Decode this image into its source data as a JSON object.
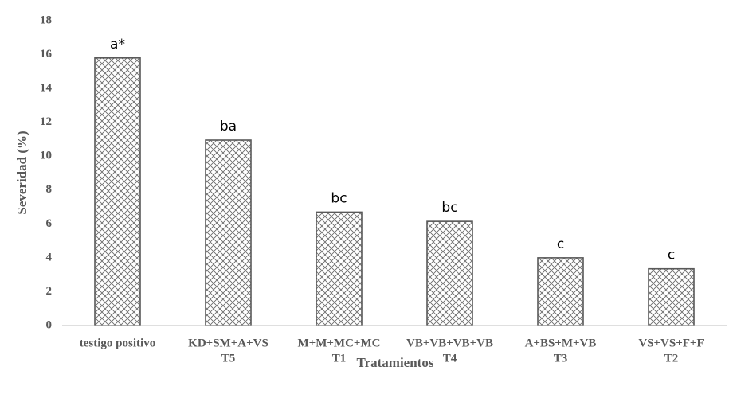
{
  "chart_data": {
    "type": "bar",
    "title": "",
    "xlabel": "Tratamientos",
    "ylabel": "Severidad (%)",
    "ylim": [
      0,
      18
    ],
    "yticks": [
      0,
      2,
      4,
      6,
      8,
      10,
      12,
      14,
      16,
      18
    ],
    "grid": false,
    "legend": "none",
    "categories": [
      [
        "testigo positivo"
      ],
      [
        "KD+SM+A+VS",
        "T5"
      ],
      [
        "M+M+MC+MC",
        "T1"
      ],
      [
        "VB+VB+VB+VB",
        "T4"
      ],
      [
        "A+BS+M+VB",
        "T3"
      ],
      [
        "VS+VS+F+F",
        "T2"
      ]
    ],
    "values": [
      15.8,
      10.95,
      6.7,
      6.15,
      4.0,
      3.35
    ],
    "letters": [
      "a*",
      "ba",
      "bc",
      "bc",
      "c",
      "c"
    ],
    "bar_fill": "crosshatch",
    "bar_color": "#595959",
    "text_color": "#595959"
  }
}
